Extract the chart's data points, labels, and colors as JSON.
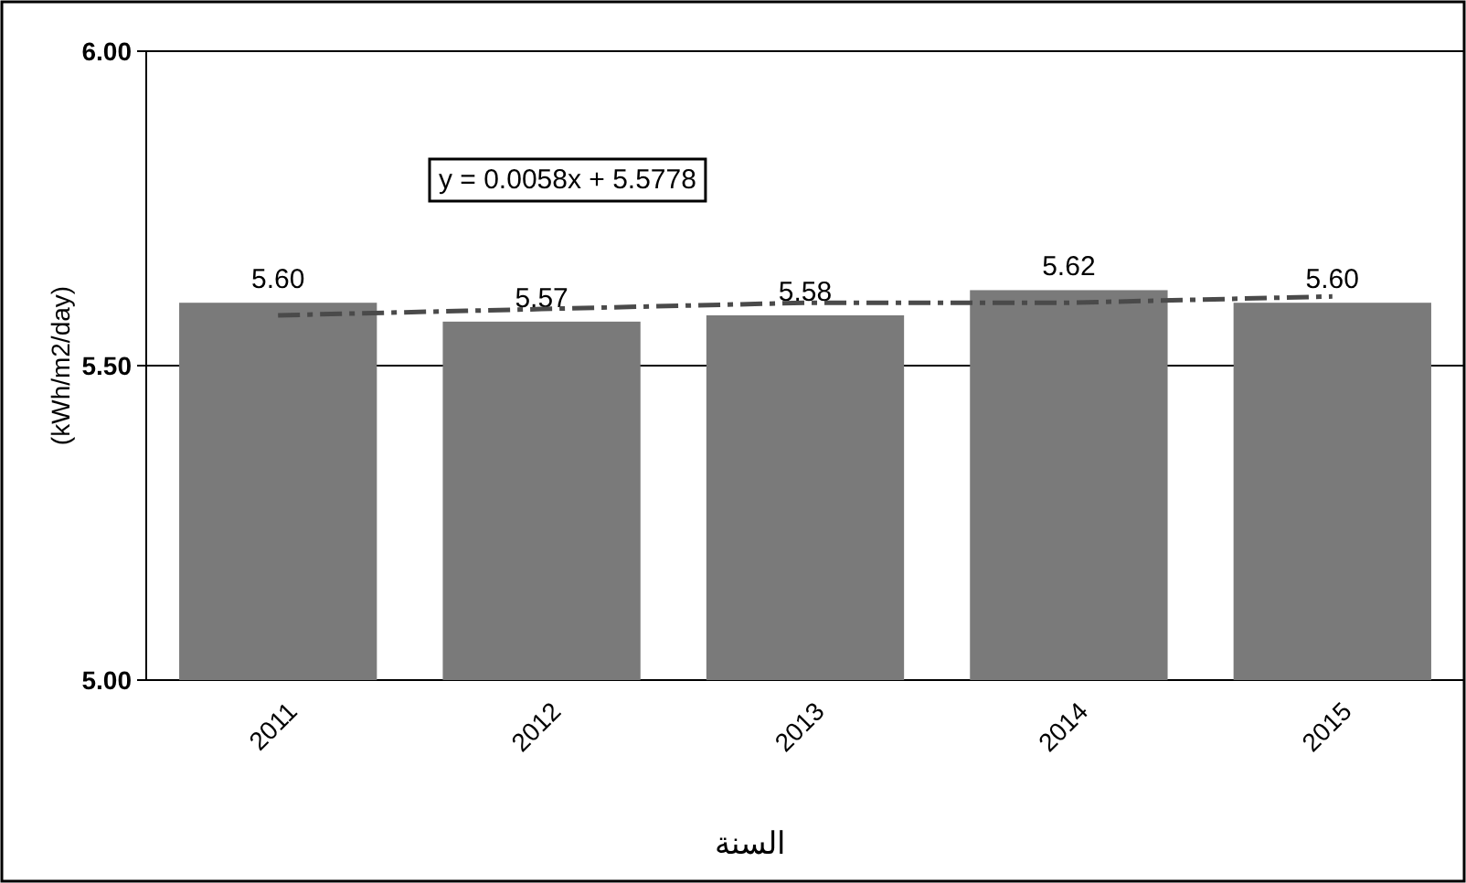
{
  "chart_data": {
    "type": "bar",
    "xlabel": "السنة",
    "ylabel": "(kWh/m2/day)",
    "categories": [
      "2011",
      "2012",
      "2013",
      "2014",
      "2015"
    ],
    "series": [
      {
        "color": "#7a7a7a",
        "values": [
          5.6,
          5.57,
          5.58,
          5.62,
          5.6
        ],
        "value_labels": [
          "5.60",
          "5.57",
          "5.58",
          "5.62",
          "5.60"
        ]
      },
      {
        "type": "line",
        "color": "#4a4a4a",
        "line_style": "dashed",
        "values": [
          5.58,
          5.59,
          5.6,
          5.6,
          5.61
        ]
      }
    ],
    "ylim": [
      5.0,
      6.0
    ],
    "yticks": [
      {
        "value": 5.0,
        "label": "5.00"
      },
      {
        "value": 5.5,
        "label": "5.50"
      },
      {
        "value": 6.0,
        "label": "6.00"
      }
    ],
    "grid": "y",
    "annotations": [
      "y = 0.0058x + 5.5778"
    ]
  }
}
